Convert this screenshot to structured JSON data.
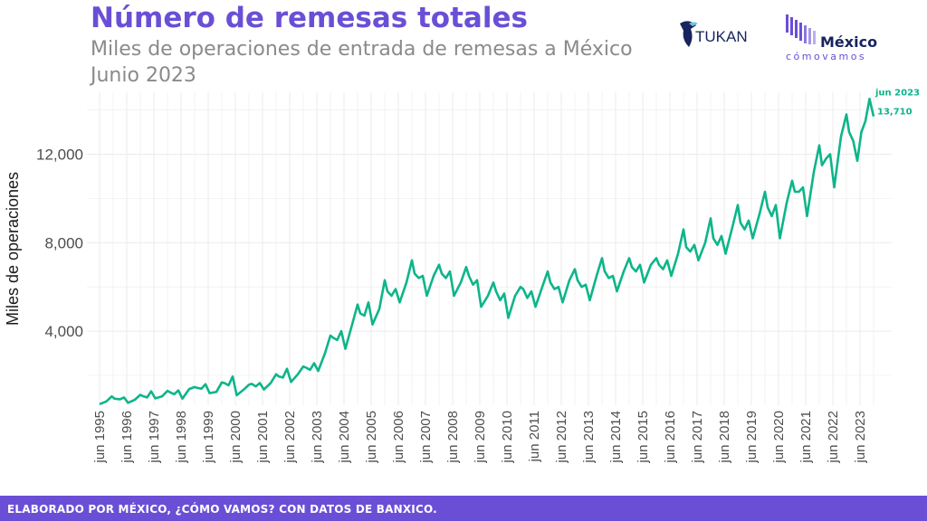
{
  "header": {
    "title": "Número de remesas totales",
    "subtitle_line1": "Miles de operaciones de entrada de remesas a México",
    "subtitle_line2": "Junio 2023"
  },
  "logos": {
    "tukan": "TUKAN",
    "mcv_line1": "México",
    "mcv_line2": "cómovamos"
  },
  "footer": {
    "text": "ELABORADO POR MÉXICO, ¿CÓMO VAMOS? CON DATOS DE BANXICO."
  },
  "colors": {
    "accent": "#6a4fd6",
    "series": "#0db58a",
    "grid": "#ebebeb",
    "text_gray": "#8a8a8a"
  },
  "chart_data": {
    "type": "line",
    "title": "Número de remesas totales",
    "xlabel": "",
    "ylabel": "Miles de operaciones",
    "xlim": [
      1995,
      2023.5
    ],
    "ylim": [
      650,
      14800
    ],
    "yticks": [
      4000,
      8000,
      12000
    ],
    "ytick_labels": [
      "4,000",
      "8,000",
      "12,000"
    ],
    "xtick_labels": [
      "jun 1995",
      "jun 1996",
      "jun 1997",
      "jun 1998",
      "jun 1999",
      "jun 2000",
      "jun 2001",
      "jun 2002",
      "jun 2003",
      "jun 2004",
      "jun 2005",
      "jun 2006",
      "jun 2007",
      "jun 2008",
      "jun 2009",
      "jun 2010",
      "jun 2011",
      "jun 2012",
      "jun 2013",
      "jun 2014",
      "jun 2015",
      "jun 2016",
      "jun 2017",
      "jun 2018",
      "jun 2019",
      "jun 2020",
      "jun 2021",
      "jun 2022",
      "jun 2023"
    ],
    "grid": true,
    "annotation": {
      "label": "jun 2023",
      "value_label": "13,710"
    },
    "series": [
      {
        "points": [
          [
            1995.0,
            700
          ],
          [
            1995.25,
            820
          ],
          [
            1995.45,
            1050
          ],
          [
            1995.55,
            950
          ],
          [
            1995.75,
            920
          ],
          [
            1995.9,
            1000
          ],
          [
            1996.05,
            760
          ],
          [
            1996.3,
            900
          ],
          [
            1996.5,
            1120
          ],
          [
            1996.6,
            1060
          ],
          [
            1996.75,
            1000
          ],
          [
            1996.9,
            1280
          ],
          [
            1997.05,
            960
          ],
          [
            1997.3,
            1050
          ],
          [
            1997.5,
            1300
          ],
          [
            1997.6,
            1230
          ],
          [
            1997.75,
            1150
          ],
          [
            1997.9,
            1320
          ],
          [
            1998.05,
            950
          ],
          [
            1998.3,
            1380
          ],
          [
            1998.5,
            1470
          ],
          [
            1998.6,
            1430
          ],
          [
            1998.75,
            1400
          ],
          [
            1998.9,
            1600
          ],
          [
            1999.05,
            1200
          ],
          [
            1999.3,
            1250
          ],
          [
            1999.5,
            1680
          ],
          [
            1999.6,
            1650
          ],
          [
            1999.75,
            1550
          ],
          [
            1999.9,
            1950
          ],
          [
            2000.05,
            1100
          ],
          [
            2000.3,
            1350
          ],
          [
            2000.5,
            1580
          ],
          [
            2000.6,
            1620
          ],
          [
            2000.75,
            1500
          ],
          [
            2000.9,
            1650
          ],
          [
            2001.05,
            1360
          ],
          [
            2001.3,
            1650
          ],
          [
            2001.5,
            2050
          ],
          [
            2001.6,
            1950
          ],
          [
            2001.75,
            1900
          ],
          [
            2001.9,
            2300
          ],
          [
            2002.05,
            1700
          ],
          [
            2002.3,
            2050
          ],
          [
            2002.5,
            2400
          ],
          [
            2002.6,
            2350
          ],
          [
            2002.75,
            2250
          ],
          [
            2002.9,
            2550
          ],
          [
            2003.05,
            2200
          ],
          [
            2003.3,
            3000
          ],
          [
            2003.5,
            3800
          ],
          [
            2003.6,
            3700
          ],
          [
            2003.75,
            3600
          ],
          [
            2003.9,
            4000
          ],
          [
            2004.05,
            3200
          ],
          [
            2004.3,
            4300
          ],
          [
            2004.5,
            5200
          ],
          [
            2004.6,
            4800
          ],
          [
            2004.75,
            4700
          ],
          [
            2004.9,
            5300
          ],
          [
            2005.05,
            4300
          ],
          [
            2005.3,
            5000
          ],
          [
            2005.5,
            6300
          ],
          [
            2005.6,
            5800
          ],
          [
            2005.75,
            5600
          ],
          [
            2005.9,
            5900
          ],
          [
            2006.05,
            5300
          ],
          [
            2006.3,
            6200
          ],
          [
            2006.5,
            7200
          ],
          [
            2006.6,
            6600
          ],
          [
            2006.75,
            6400
          ],
          [
            2006.9,
            6500
          ],
          [
            2007.05,
            5600
          ],
          [
            2007.3,
            6500
          ],
          [
            2007.5,
            7000
          ],
          [
            2007.6,
            6600
          ],
          [
            2007.75,
            6400
          ],
          [
            2007.9,
            6700
          ],
          [
            2008.05,
            5600
          ],
          [
            2008.3,
            6200
          ],
          [
            2008.5,
            6900
          ],
          [
            2008.6,
            6500
          ],
          [
            2008.75,
            6100
          ],
          [
            2008.9,
            6300
          ],
          [
            2009.05,
            5100
          ],
          [
            2009.3,
            5600
          ],
          [
            2009.5,
            6200
          ],
          [
            2009.6,
            5800
          ],
          [
            2009.75,
            5400
          ],
          [
            2009.9,
            5700
          ],
          [
            2010.05,
            4600
          ],
          [
            2010.3,
            5600
          ],
          [
            2010.5,
            6000
          ],
          [
            2010.6,
            5900
          ],
          [
            2010.75,
            5500
          ],
          [
            2010.9,
            5800
          ],
          [
            2011.05,
            5100
          ],
          [
            2011.3,
            6000
          ],
          [
            2011.5,
            6700
          ],
          [
            2011.6,
            6200
          ],
          [
            2011.75,
            5900
          ],
          [
            2011.9,
            6000
          ],
          [
            2012.05,
            5300
          ],
          [
            2012.3,
            6300
          ],
          [
            2012.5,
            6800
          ],
          [
            2012.6,
            6300
          ],
          [
            2012.75,
            6000
          ],
          [
            2012.9,
            6100
          ],
          [
            2013.05,
            5400
          ],
          [
            2013.3,
            6500
          ],
          [
            2013.5,
            7300
          ],
          [
            2013.6,
            6700
          ],
          [
            2013.75,
            6400
          ],
          [
            2013.9,
            6500
          ],
          [
            2014.05,
            5800
          ],
          [
            2014.3,
            6700
          ],
          [
            2014.5,
            7300
          ],
          [
            2014.6,
            6900
          ],
          [
            2014.75,
            6700
          ],
          [
            2014.9,
            7000
          ],
          [
            2015.05,
            6200
          ],
          [
            2015.3,
            7000
          ],
          [
            2015.5,
            7300
          ],
          [
            2015.6,
            7000
          ],
          [
            2015.75,
            6800
          ],
          [
            2015.9,
            7200
          ],
          [
            2016.05,
            6500
          ],
          [
            2016.3,
            7500
          ],
          [
            2016.5,
            8600
          ],
          [
            2016.6,
            7800
          ],
          [
            2016.75,
            7600
          ],
          [
            2016.9,
            7900
          ],
          [
            2017.05,
            7200
          ],
          [
            2017.3,
            8000
          ],
          [
            2017.5,
            9100
          ],
          [
            2017.6,
            8200
          ],
          [
            2017.75,
            7900
          ],
          [
            2017.9,
            8300
          ],
          [
            2018.05,
            7500
          ],
          [
            2018.3,
            8700
          ],
          [
            2018.5,
            9700
          ],
          [
            2018.6,
            8900
          ],
          [
            2018.75,
            8600
          ],
          [
            2018.9,
            9000
          ],
          [
            2019.05,
            8200
          ],
          [
            2019.3,
            9300
          ],
          [
            2019.5,
            10300
          ],
          [
            2019.6,
            9600
          ],
          [
            2019.75,
            9200
          ],
          [
            2019.9,
            9700
          ],
          [
            2020.05,
            8200
          ],
          [
            2020.3,
            9800
          ],
          [
            2020.5,
            10800
          ],
          [
            2020.6,
            10300
          ],
          [
            2020.75,
            10300
          ],
          [
            2020.9,
            10500
          ],
          [
            2021.05,
            9200
          ],
          [
            2021.3,
            11200
          ],
          [
            2021.5,
            12400
          ],
          [
            2021.6,
            11500
          ],
          [
            2021.75,
            11800
          ],
          [
            2021.9,
            12000
          ],
          [
            2022.05,
            10500
          ],
          [
            2022.3,
            12800
          ],
          [
            2022.5,
            13800
          ],
          [
            2022.6,
            13000
          ],
          [
            2022.75,
            12600
          ],
          [
            2022.9,
            11700
          ],
          [
            2023.05,
            13000
          ],
          [
            2023.2,
            13500
          ],
          [
            2023.35,
            14500
          ],
          [
            2023.5,
            13710
          ]
        ]
      }
    ]
  }
}
